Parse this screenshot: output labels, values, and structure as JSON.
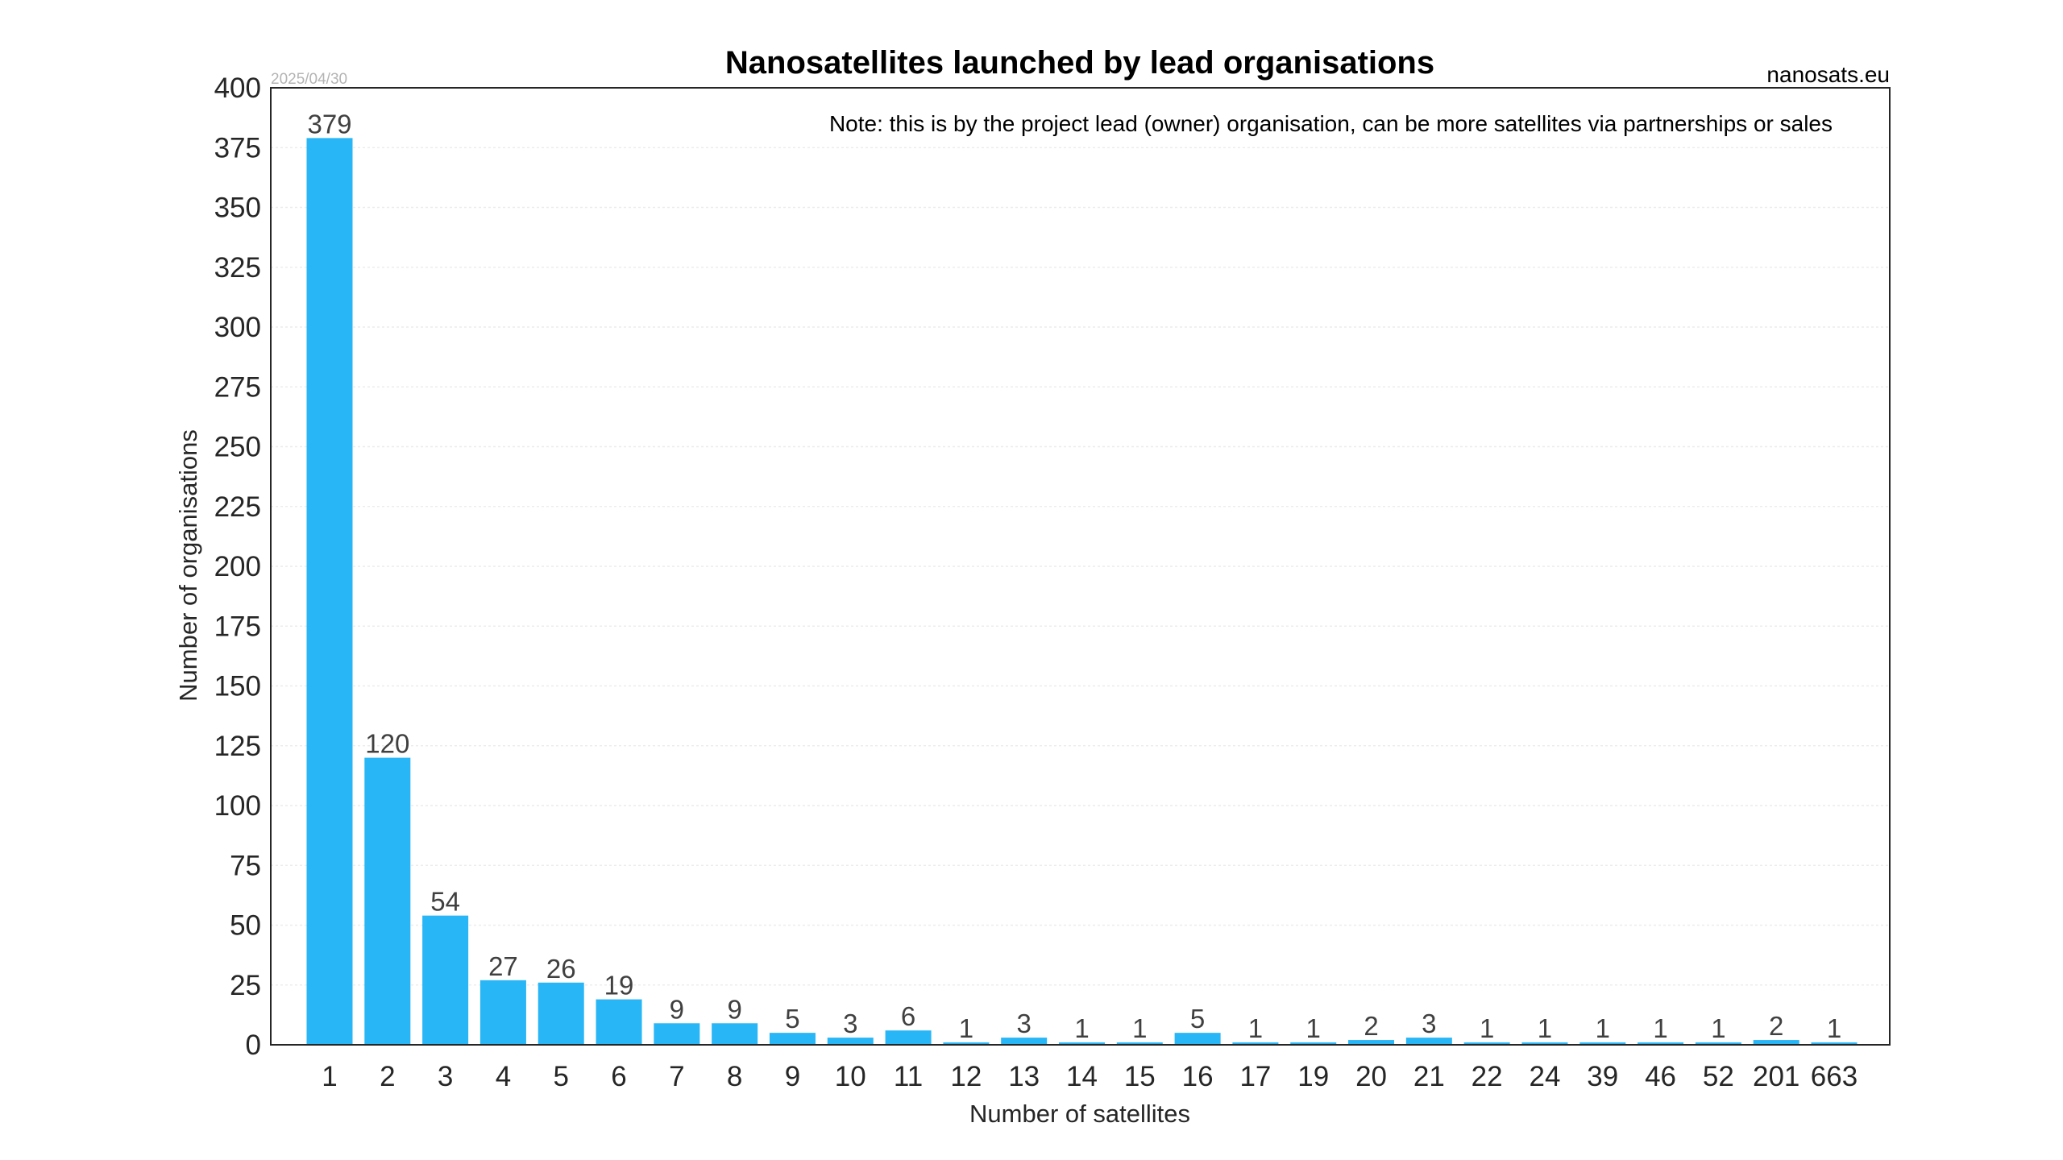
{
  "header": {
    "title": "Nanosatellites launched by lead organisations",
    "date": "2025/04/30",
    "source": "nanosats.eu",
    "note": "Note: this is by the project lead (owner) organisation, can be more satellites via partnerships or sales"
  },
  "colors": {
    "bar": "#29b6f6",
    "gridline": "#ececec",
    "frame": "#262626"
  },
  "chart_data": {
    "type": "bar",
    "title": "Nanosatellites launched by lead organisations",
    "xlabel": "Number of satellites",
    "ylabel": "Number of organisations",
    "categories": [
      "1",
      "2",
      "3",
      "4",
      "5",
      "6",
      "7",
      "8",
      "9",
      "10",
      "11",
      "12",
      "13",
      "14",
      "15",
      "16",
      "17",
      "19",
      "20",
      "21",
      "22",
      "24",
      "39",
      "46",
      "52",
      "201",
      "663"
    ],
    "values": [
      379,
      120,
      54,
      27,
      26,
      19,
      9,
      9,
      5,
      3,
      6,
      1,
      3,
      1,
      1,
      5,
      1,
      1,
      2,
      3,
      1,
      1,
      1,
      1,
      1,
      2,
      1
    ],
    "ylim": [
      0,
      400
    ],
    "yticks": [
      0,
      25,
      50,
      75,
      100,
      125,
      150,
      175,
      200,
      225,
      250,
      275,
      300,
      325,
      350,
      375,
      400
    ],
    "grid": "horizontal dotted",
    "legend": "none"
  }
}
